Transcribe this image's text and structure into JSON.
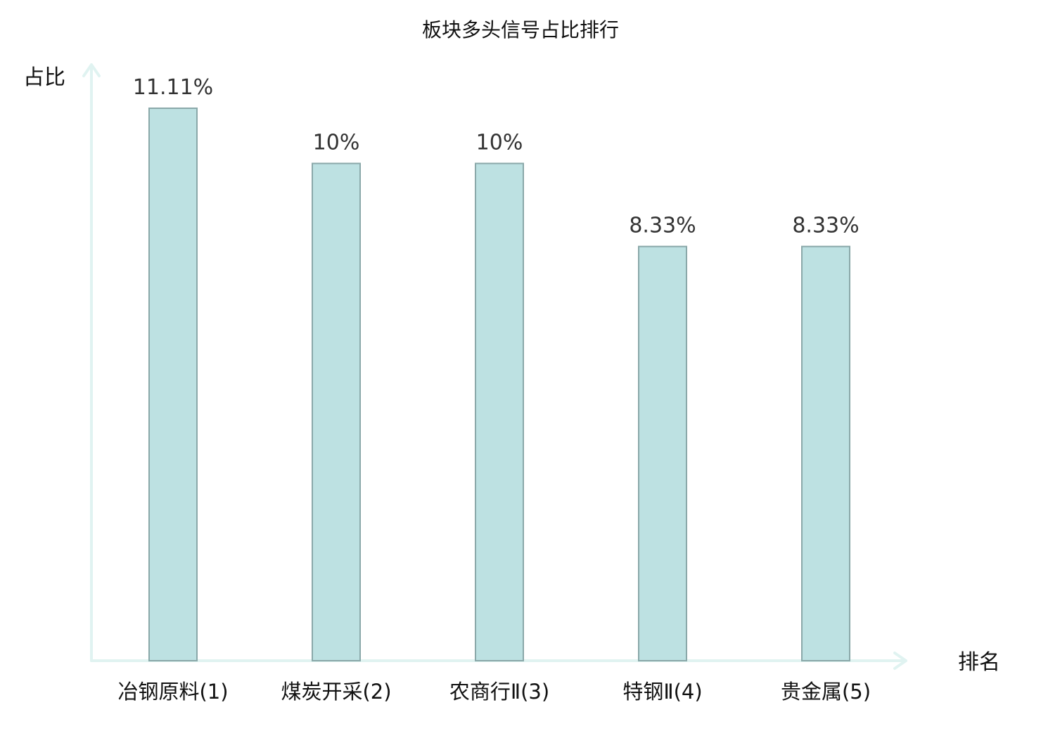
{
  "chart_data": {
    "type": "bar",
    "title": "板块多头信号占比排行",
    "ylabel": "占比",
    "xlabel": "排名",
    "ylim": [
      0,
      12
    ],
    "grid": false,
    "legend": "none",
    "categories": [
      "冶钢原料(1)",
      "煤炭开采(2)",
      "农商行Ⅱ(3)",
      "特钢Ⅱ(4)",
      "贵金属(5)"
    ],
    "values": [
      11.11,
      10,
      10,
      8.33,
      8.33
    ],
    "value_labels": [
      "11.11%",
      "10%",
      "10%",
      "8.33%",
      "8.33%"
    ],
    "category_colors": [
      "#111111",
      "#111111",
      "#111111",
      "#e02020",
      "#111111"
    ],
    "bar_fill": "#bde1e2",
    "bar_stroke": "#8aa8a9",
    "axis_color": "#e0f3f1"
  }
}
